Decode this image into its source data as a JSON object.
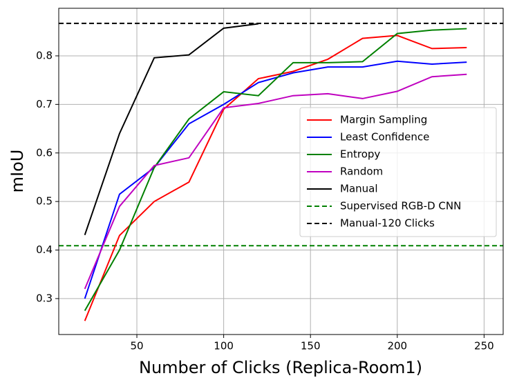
{
  "chart_data": {
    "type": "line",
    "x_label": "Number of Clicks (Replica-Room1)",
    "y_label": "mIoU",
    "series": [
      {
        "name": "Margin Sampling",
        "color": "#ff0000",
        "x": [
          20,
          40,
          60,
          80,
          100,
          120,
          140,
          160,
          180,
          200,
          220,
          240
        ],
        "values": [
          0.254,
          0.43,
          0.5,
          0.54,
          0.69,
          0.753,
          0.768,
          0.793,
          0.836,
          0.842,
          0.815,
          0.817
        ]
      },
      {
        "name": "Least Confidence",
        "color": "#0000ff",
        "x": [
          20,
          40,
          60,
          80,
          100,
          120,
          140,
          160,
          180,
          200,
          220,
          240
        ],
        "values": [
          0.3,
          0.515,
          0.57,
          0.66,
          0.7,
          0.745,
          0.765,
          0.777,
          0.777,
          0.789,
          0.783,
          0.787
        ]
      },
      {
        "name": "Entropy",
        "color": "#008000",
        "x": [
          20,
          40,
          60,
          80,
          100,
          120,
          140,
          160,
          180,
          200,
          220,
          240
        ],
        "values": [
          0.275,
          0.4,
          0.57,
          0.67,
          0.726,
          0.718,
          0.786,
          0.786,
          0.788,
          0.846,
          0.853,
          0.856
        ]
      },
      {
        "name": "Random",
        "color": "#bf00bf",
        "x": [
          20,
          40,
          60,
          80,
          100,
          120,
          140,
          160,
          180,
          200,
          220,
          240
        ],
        "values": [
          0.32,
          0.49,
          0.574,
          0.59,
          0.693,
          0.702,
          0.718,
          0.722,
          0.712,
          0.727,
          0.757,
          0.762
        ]
      },
      {
        "name": "Manual",
        "color": "#000000",
        "x": [
          20,
          40,
          60,
          80,
          100,
          120
        ],
        "values": [
          0.431,
          0.64,
          0.796,
          0.802,
          0.857,
          0.866
        ]
      }
    ],
    "reference_lines": [
      {
        "name": "Supervised RGB-D CNN",
        "color": "#008000",
        "value": 0.409
      },
      {
        "name": "Manual-120 Clicks",
        "color": "#000000",
        "value": 0.867
      }
    ],
    "xlim": [
      5,
      261
    ],
    "xticks": [
      50,
      100,
      150,
      200,
      250
    ],
    "ylim": [
      0.226,
      0.898
    ],
    "yticks": [
      0.3,
      0.4,
      0.5,
      0.6,
      0.7,
      0.8
    ],
    "grid": true,
    "legend": "center right"
  }
}
